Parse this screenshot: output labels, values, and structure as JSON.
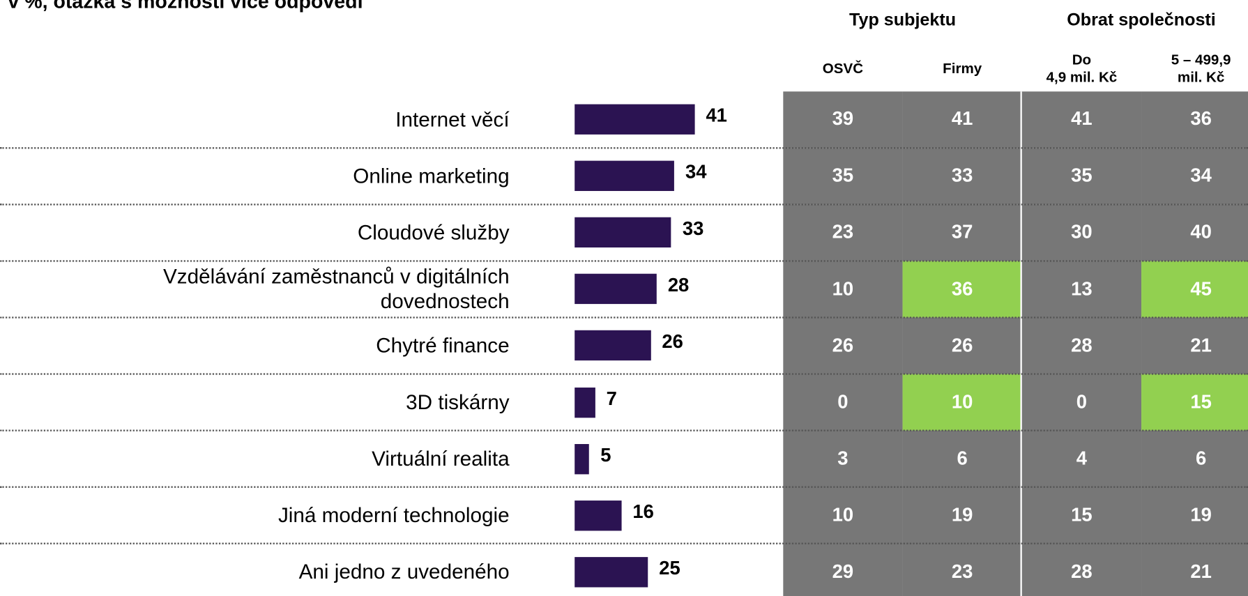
{
  "chart_data": {
    "type": "bar",
    "subtitle": "v %, otázka s možností více odpovědí",
    "categories": [
      "Internet věcí",
      "Online marketing",
      "Cloudové služby",
      "Vzdělávání zaměstnanců v digitálních dovednostech",
      "Chytré finance",
      "3D tiskárny",
      "Virtuální realita",
      "Jiná moderní technologie",
      "Ani jedno z uvedeného"
    ],
    "values": [
      41,
      34,
      33,
      28,
      26,
      7,
      5,
      16,
      25
    ],
    "color": "#2b1352",
    "table": {
      "cell_color": "#777777",
      "highlight_color": "#92d050",
      "groups": [
        {
          "name": "Typ subjektu",
          "columns": [
            {
              "name": "OSVČ",
              "values": [
                39,
                35,
                23,
                10,
                26,
                0,
                3,
                10,
                29
              ],
              "highlighted": []
            },
            {
              "name": "Firmy",
              "values": [
                41,
                33,
                37,
                36,
                26,
                10,
                6,
                19,
                23
              ],
              "highlighted": [
                3,
                5
              ]
            }
          ]
        },
        {
          "name": "Obrat společnosti",
          "columns": [
            {
              "name": "Do\n4,9 mil. Kč",
              "values": [
                41,
                35,
                30,
                13,
                28,
                0,
                4,
                15,
                28
              ],
              "highlighted": []
            },
            {
              "name": "5 – 499,9\nmil. Kč",
              "values": [
                36,
                34,
                40,
                45,
                21,
                15,
                6,
                19,
                21
              ],
              "highlighted": [
                3,
                5
              ]
            }
          ]
        }
      ]
    }
  }
}
